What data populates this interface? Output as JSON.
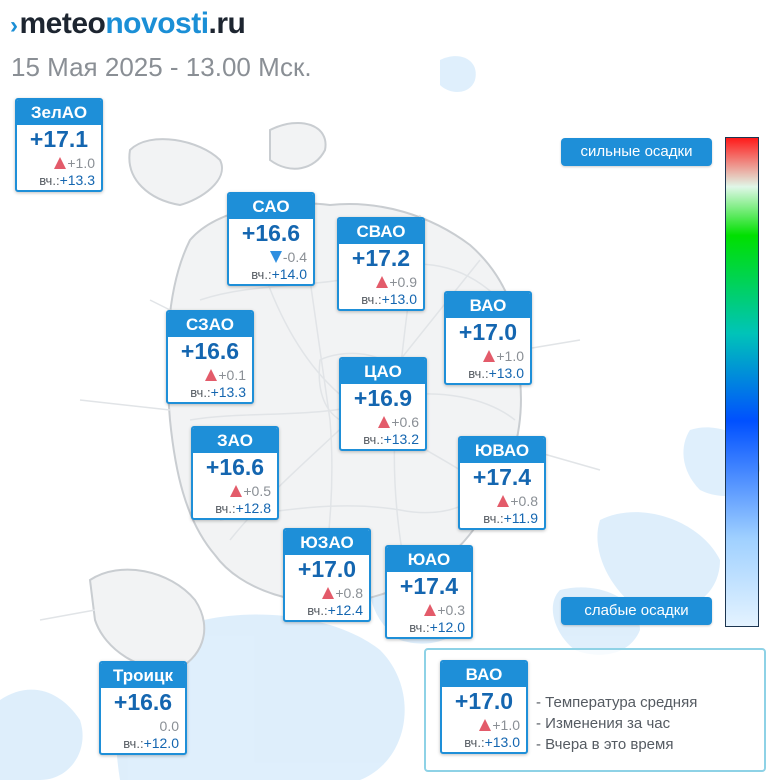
{
  "header": {
    "logo_parts": [
      "meteo",
      "novosti",
      ".ru"
    ],
    "subtitle": "15 Мая 2025 - 13.00 Мск."
  },
  "colors": {
    "accent": "#1e8fd8",
    "temp_text": "#1466b0",
    "rise": "#e35b6a",
    "fall": "#2f8fe0"
  },
  "districts": [
    {
      "name": "ЗелАО",
      "temp": "+17.1",
      "trend": "up",
      "change": "+1.0",
      "yest_label": "вч.:",
      "yest": "+13.3"
    },
    {
      "name": "САО",
      "temp": "+16.6",
      "trend": "down",
      "change": "-0.4",
      "yest_label": "вч.:",
      "yest": "+14.0"
    },
    {
      "name": "СВАО",
      "temp": "+17.2",
      "trend": "up",
      "change": "+0.9",
      "yest_label": "вч.:",
      "yest": "+13.0"
    },
    {
      "name": "ВАО",
      "temp": "+17.0",
      "trend": "up",
      "change": "+1.0",
      "yest_label": "вч.:",
      "yest": "+13.0"
    },
    {
      "name": "СЗАО",
      "temp": "+16.6",
      "trend": "up",
      "change": "+0.1",
      "yest_label": "вч.:",
      "yest": "+13.3"
    },
    {
      "name": "ЦАО",
      "temp": "+16.9",
      "trend": "up",
      "change": "+0.6",
      "yest_label": "вч.:",
      "yest": "+13.2"
    },
    {
      "name": "ЗАО",
      "temp": "+16.6",
      "trend": "up",
      "change": "+0.5",
      "yest_label": "вч.:",
      "yest": "+12.8"
    },
    {
      "name": "ЮВАО",
      "temp": "+17.4",
      "trend": "up",
      "change": "+0.8",
      "yest_label": "вч.:",
      "yest": "+11.9"
    },
    {
      "name": "ЮЗАО",
      "temp": "+17.0",
      "trend": "up",
      "change": "+0.8",
      "yest_label": "вч.:",
      "yest": "+12.4"
    },
    {
      "name": "ЮАО",
      "temp": "+17.4",
      "trend": "up",
      "change": "+0.3",
      "yest_label": "вч.:",
      "yest": "+12.0"
    },
    {
      "name": "Троицк",
      "temp": "+16.6",
      "trend": "none",
      "change": "0.0",
      "yest_label": "вч.:",
      "yest": "+12.0"
    }
  ],
  "precip_scale": {
    "high_label": "сильные осадки",
    "low_label": "слабые осадки"
  },
  "legend": {
    "sample": {
      "name": "ВАО",
      "temp": "+17.0",
      "trend": "up",
      "change": "+1.0",
      "yest_label": "вч.:",
      "yest": "+13.0"
    },
    "items": [
      "- Температура средняя",
      "- Изменения за час",
      "- Вчера в это время"
    ]
  }
}
